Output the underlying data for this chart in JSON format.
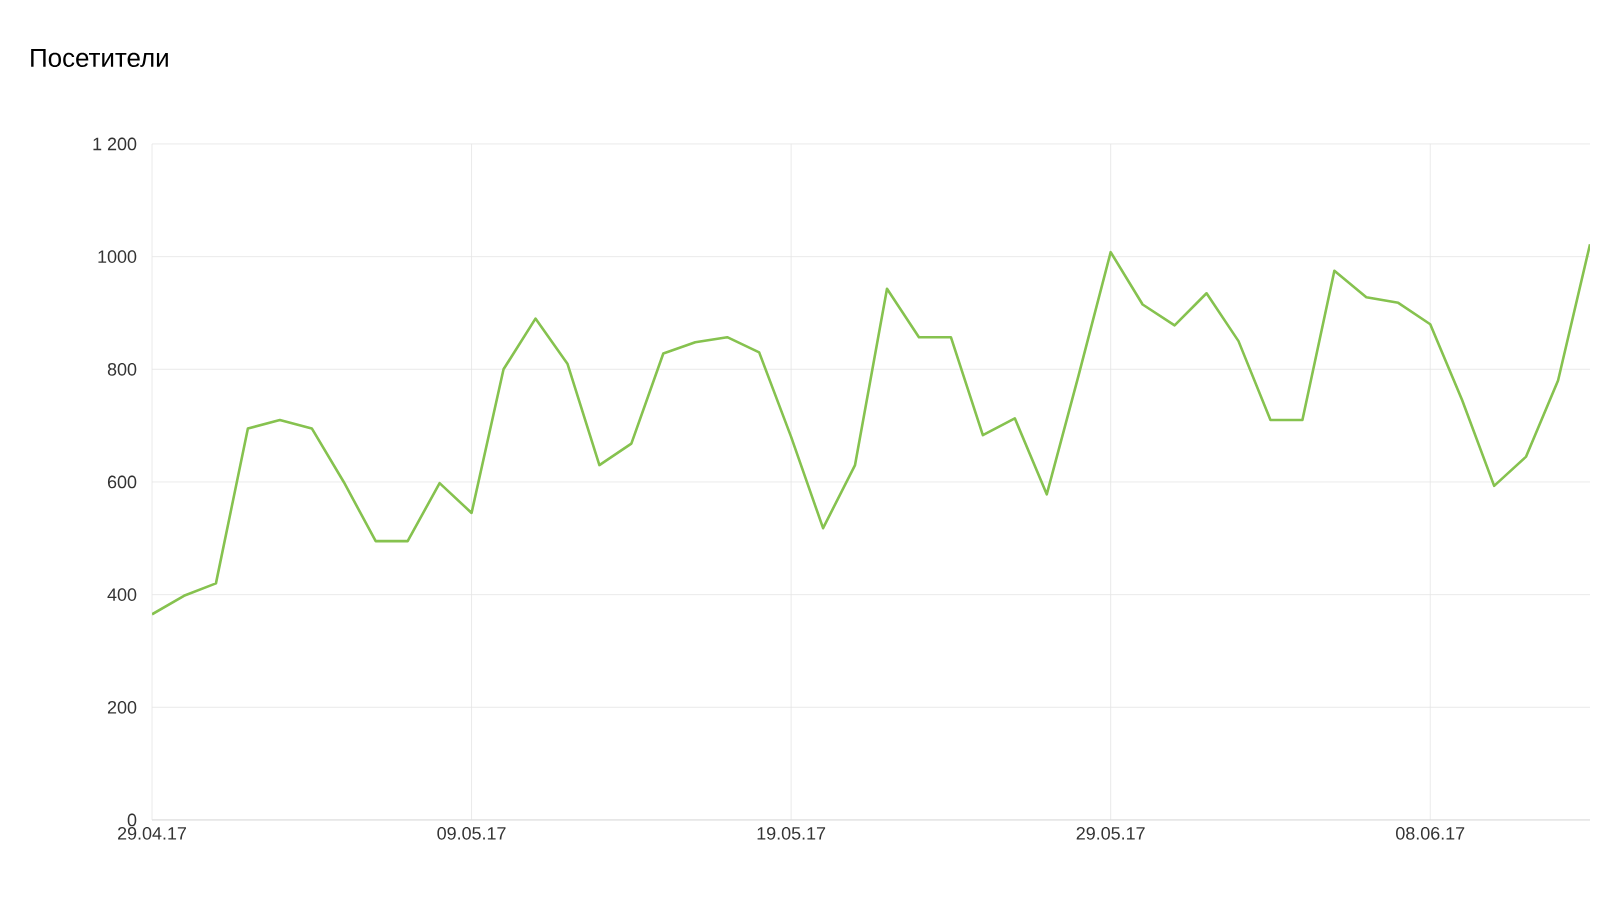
{
  "chart_data": {
    "type": "line",
    "title": "Посетители",
    "x": [
      "2017-04-29",
      "2017-04-30",
      "2017-05-01",
      "2017-05-02",
      "2017-05-03",
      "2017-05-04",
      "2017-05-05",
      "2017-05-06",
      "2017-05-07",
      "2017-05-08",
      "2017-05-09",
      "2017-05-10",
      "2017-05-11",
      "2017-05-12",
      "2017-05-13",
      "2017-05-14",
      "2017-05-15",
      "2017-05-16",
      "2017-05-17",
      "2017-05-18",
      "2017-05-19",
      "2017-05-20",
      "2017-05-21",
      "2017-05-22",
      "2017-05-23",
      "2017-05-24",
      "2017-05-25",
      "2017-05-26",
      "2017-05-27",
      "2017-05-28",
      "2017-05-29",
      "2017-05-30",
      "2017-05-31",
      "2017-06-01",
      "2017-06-02",
      "2017-06-03",
      "2017-06-04",
      "2017-06-05",
      "2017-06-06",
      "2017-06-07",
      "2017-06-08",
      "2017-06-09",
      "2017-06-10",
      "2017-06-11",
      "2017-06-12",
      "2017-06-13"
    ],
    "values": [
      365,
      398,
      420,
      695,
      710,
      695,
      600,
      495,
      495,
      598,
      545,
      800,
      890,
      810,
      630,
      668,
      828,
      848,
      857,
      830,
      680,
      518,
      630,
      943,
      857,
      857,
      683,
      713,
      578,
      790,
      1008,
      915,
      878,
      935,
      850,
      710,
      710,
      975,
      928,
      918,
      880,
      745,
      593,
      645,
      780,
      1022
    ],
    "color": "#86c24f",
    "xlim": [
      "2017-04-29",
      "2017-06-13"
    ],
    "xticks": [
      {
        "value": "2017-04-29",
        "label": "29.04.17"
      },
      {
        "value": "2017-05-09",
        "label": "09.05.17"
      },
      {
        "value": "2017-05-19",
        "label": "19.05.17"
      },
      {
        "value": "2017-05-29",
        "label": "29.05.17"
      },
      {
        "value": "2017-06-08",
        "label": "08.06.17"
      }
    ],
    "ylim": [
      0,
      1200
    ],
    "yticks": [
      0,
      200,
      400,
      600,
      800,
      1000,
      {
        "value": 1200,
        "label": "1 200"
      }
    ],
    "grid": true,
    "marker": "none",
    "line_style": "solid"
  }
}
